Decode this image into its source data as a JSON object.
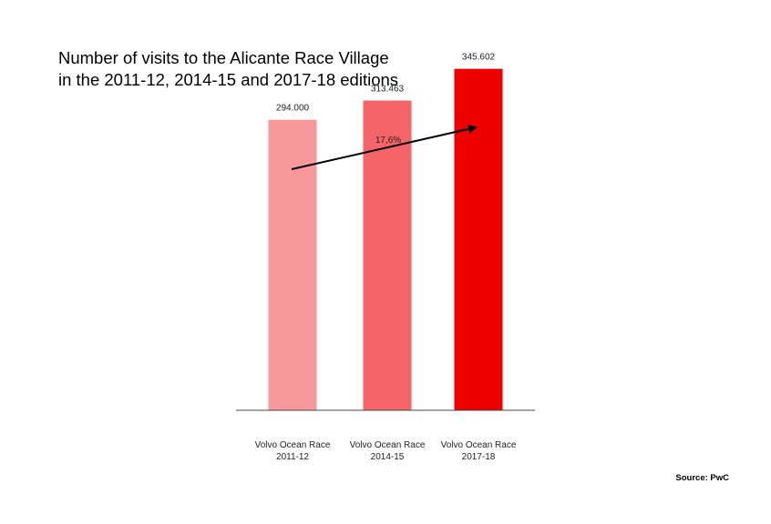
{
  "title": {
    "line1": "Number of visits to the Alicante Race Village",
    "line2": "in the 2011-12, 2014-15 and 2017-18 editions"
  },
  "source": "Source: PwC",
  "chart_data": {
    "type": "bar",
    "categories": [
      [
        "Volvo Ocean Race",
        "2011-12"
      ],
      [
        "Volvo Ocean Race",
        "2014-15"
      ],
      [
        "Volvo Ocean Race",
        "2017-18"
      ]
    ],
    "values": [
      294000,
      313463,
      345602
    ],
    "value_labels": [
      "294.000",
      "313.463",
      "345.602"
    ],
    "bar_colors": [
      "#f7999b",
      "#f56466",
      "#ee0000"
    ],
    "growth_label": "17,6%",
    "ylim": [
      0,
      360000
    ],
    "grid": false,
    "legend": "none"
  }
}
